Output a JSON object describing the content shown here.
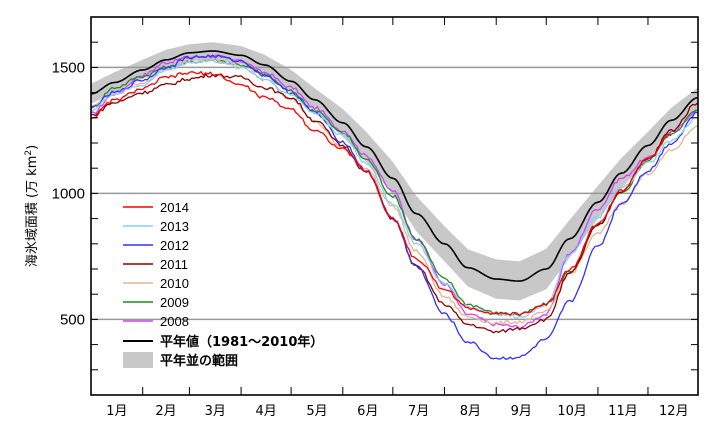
{
  "chart_data": {
    "type": "line",
    "title": "",
    "ylabel": "海氷域面積 (万 km²)",
    "ylabel_parts": {
      "text": "海氷域面積 (万 km",
      "sup": "2",
      "close": ")"
    },
    "xlabel": "",
    "ylim": [
      200,
      1700
    ],
    "yticks_major": [
      500,
      1000,
      1500
    ],
    "yticks_minor_step": 100,
    "grid": "horizontal at major y ticks",
    "x_unit": "day of year",
    "xlim": [
      1,
      365
    ],
    "month_labels": [
      "1月",
      "2月",
      "3月",
      "4月",
      "5月",
      "6月",
      "7月",
      "8月",
      "9月",
      "10月",
      "11月",
      "12月"
    ],
    "x": [
      1,
      15,
      32,
      46,
      60,
      74,
      91,
      105,
      121,
      135,
      152,
      166,
      182,
      196,
      213,
      227,
      244,
      258,
      274,
      288,
      305,
      319,
      335,
      349,
      365
    ],
    "normal": {
      "name": "平年値 (1981〜2010年)",
      "color": "#000000",
      "values": [
        1395,
        1440,
        1490,
        1530,
        1558,
        1565,
        1548,
        1510,
        1445,
        1372,
        1280,
        1185,
        1060,
        920,
        800,
        705,
        660,
        652,
        700,
        820,
        965,
        1080,
        1190,
        1290,
        1380
      ]
    },
    "normal_range": {
      "name": "平年並の範囲",
      "color": "#c8c8c8",
      "lower": [
        1355,
        1400,
        1455,
        1495,
        1525,
        1530,
        1512,
        1470,
        1400,
        1325,
        1225,
        1125,
        995,
        850,
        730,
        630,
        582,
        575,
        620,
        745,
        900,
        1020,
        1135,
        1240,
        1340
      ],
      "upper": [
        1435,
        1480,
        1530,
        1570,
        1592,
        1600,
        1585,
        1550,
        1490,
        1418,
        1335,
        1245,
        1125,
        990,
        870,
        778,
        738,
        730,
        780,
        895,
        1030,
        1140,
        1245,
        1340,
        1420
      ]
    },
    "series": [
      {
        "name": "2014",
        "color": "#ff0000",
        "values": [
          1300,
          1370,
          1415,
          1460,
          1478,
          1475,
          1430,
          1380,
          1335,
          1250,
          1175,
          1090,
          900,
          740,
          620,
          545,
          525,
          520,
          560,
          700,
          880,
          1010,
          1140,
          1230,
          null
        ]
      },
      {
        "name": "2013",
        "color": "#87cefa",
        "values": [
          1330,
          1395,
          1430,
          1490,
          1520,
          1525,
          1500,
          1455,
          1390,
          1320,
          1230,
          1120,
          960,
          800,
          640,
          550,
          520,
          510,
          560,
          760,
          905,
          1020,
          1120,
          1210,
          1300
        ]
      },
      {
        "name": "2012",
        "color": "#3030ff",
        "values": [
          1340,
          1400,
          1450,
          1500,
          1540,
          1545,
          1525,
          1470,
          1400,
          1320,
          1205,
          1090,
          900,
          710,
          520,
          410,
          345,
          350,
          420,
          570,
          790,
          960,
          1090,
          1200,
          1320
        ]
      },
      {
        "name": "2011",
        "color": "#8b0000",
        "values": [
          1310,
          1360,
          1400,
          1430,
          1455,
          1470,
          1460,
          1420,
          1380,
          1290,
          1190,
          1085,
          900,
          710,
          560,
          480,
          450,
          465,
          500,
          680,
          870,
          1010,
          1135,
          1250,
          1360
        ]
      },
      {
        "name": "2010",
        "color": "#e6b48c",
        "values": [
          1345,
          1395,
          1440,
          1490,
          1520,
          1530,
          1505,
          1450,
          1380,
          1285,
          1180,
          1100,
          950,
          770,
          590,
          510,
          485,
          490,
          530,
          680,
          840,
          960,
          1080,
          1170,
          1270
        ]
      },
      {
        "name": "2009",
        "color": "#228b22",
        "values": [
          1340,
          1420,
          1465,
          1500,
          1520,
          1530,
          1510,
          1470,
          1405,
          1330,
          1240,
          1135,
          990,
          820,
          660,
          560,
          525,
          520,
          560,
          690,
          875,
          1000,
          1130,
          1240,
          1330
        ]
      },
      {
        "name": "2008",
        "color": "#cc44ff",
        "values": [
          1315,
          1395,
          1470,
          1520,
          1540,
          1545,
          1525,
          1480,
          1420,
          1340,
          1250,
          1150,
          1010,
          820,
          640,
          520,
          480,
          470,
          520,
          760,
          940,
          1060,
          1140,
          1240,
          1330
        ]
      }
    ],
    "legend": {
      "placement": "lower-left inside plot",
      "entries": [
        "2014",
        "2013",
        "2012",
        "2011",
        "2010",
        "2009",
        "2008",
        "平年値 (1981〜2010年)",
        "平年並の範囲"
      ]
    }
  },
  "ui": {
    "legend_normal_label": "平年値（1981～2010年）",
    "legend_range_label": "平年並の範囲"
  }
}
